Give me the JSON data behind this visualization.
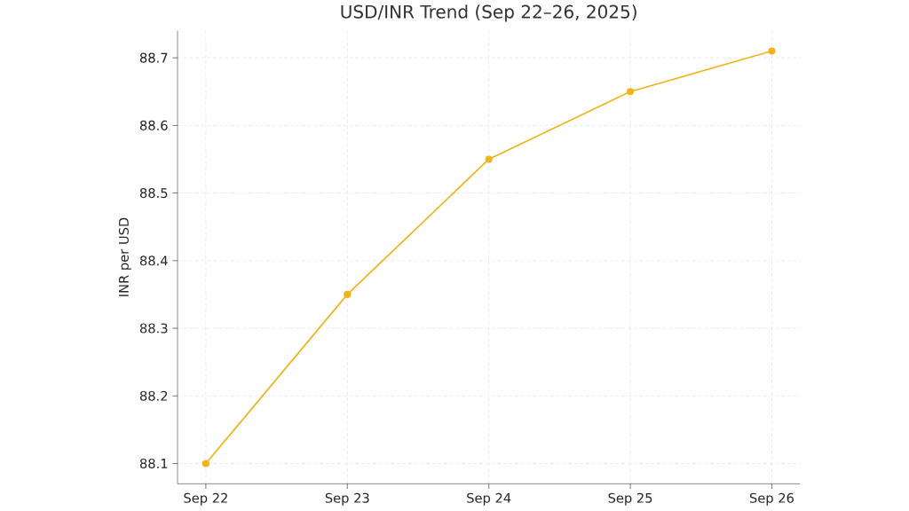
{
  "chart_data": {
    "type": "line",
    "title": "USD/INR Trend (Sep 22–26, 2025)",
    "ylabel": "INR per USD",
    "categories": [
      "Sep 22",
      "Sep 23",
      "Sep 24",
      "Sep 25",
      "Sep 26"
    ],
    "series": [
      {
        "color": "#f0b41c",
        "values": [
          88.1,
          88.35,
          88.55,
          88.65,
          88.71
        ]
      }
    ],
    "ylim": [
      88.07,
      88.74
    ],
    "yticks": [
      88.1,
      88.2,
      88.3,
      88.4,
      88.5,
      88.6,
      88.7
    ],
    "grid": true,
    "marker": "circle",
    "line_style": "solid"
  }
}
